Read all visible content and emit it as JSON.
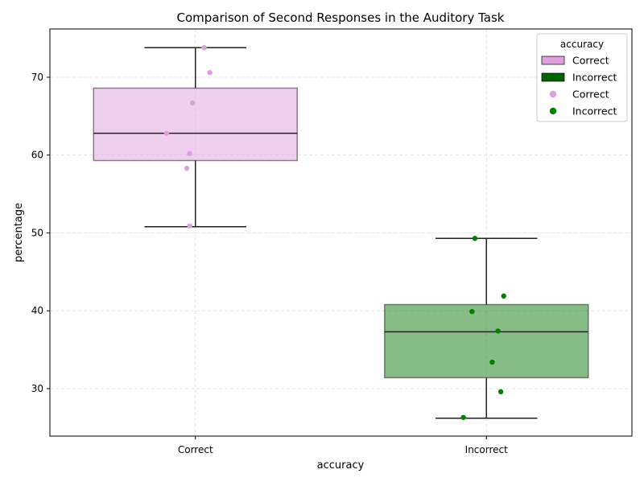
{
  "chart_data": {
    "type": "box",
    "title": "Comparison of Second Responses in the Auditory Task",
    "xlabel": "accuracy",
    "ylabel": "percentage",
    "ylim": [
      23.9,
      76.2
    ],
    "yticks": [
      30,
      40,
      50,
      60,
      70
    ],
    "grid": true,
    "categories": [
      "Correct",
      "Incorrect"
    ],
    "boxes": [
      {
        "category": "Correct",
        "whisker_low": 50.8,
        "q1": 59.3,
        "median": 62.8,
        "q3": 68.6,
        "whisker_high": 73.8,
        "color": "#dda0dd"
      },
      {
        "category": "Incorrect",
        "whisker_low": 26.2,
        "q1": 31.4,
        "median": 37.3,
        "q3": 40.8,
        "whisker_high": 49.3,
        "color": "#0f7a0f"
      }
    ],
    "points": [
      {
        "category": "Correct",
        "values": [
          73.8,
          70.6,
          66.7,
          62.8,
          60.2,
          58.3,
          50.9
        ],
        "color": "#dda0dd"
      },
      {
        "category": "Incorrect",
        "values": [
          49.3,
          41.9,
          39.9,
          37.4,
          33.4,
          29.6,
          26.3
        ],
        "color": "#008000"
      }
    ],
    "legend": {
      "title": "accuracy",
      "placement": "top-right",
      "entries": [
        {
          "label": "Correct",
          "kind": "patch",
          "color": "#dda0dd"
        },
        {
          "label": "Incorrect",
          "kind": "patch",
          "color": "#006400"
        },
        {
          "label": "Correct",
          "kind": "marker",
          "color": "#dda0dd"
        },
        {
          "label": "Incorrect",
          "kind": "marker",
          "color": "#008000"
        }
      ]
    }
  }
}
